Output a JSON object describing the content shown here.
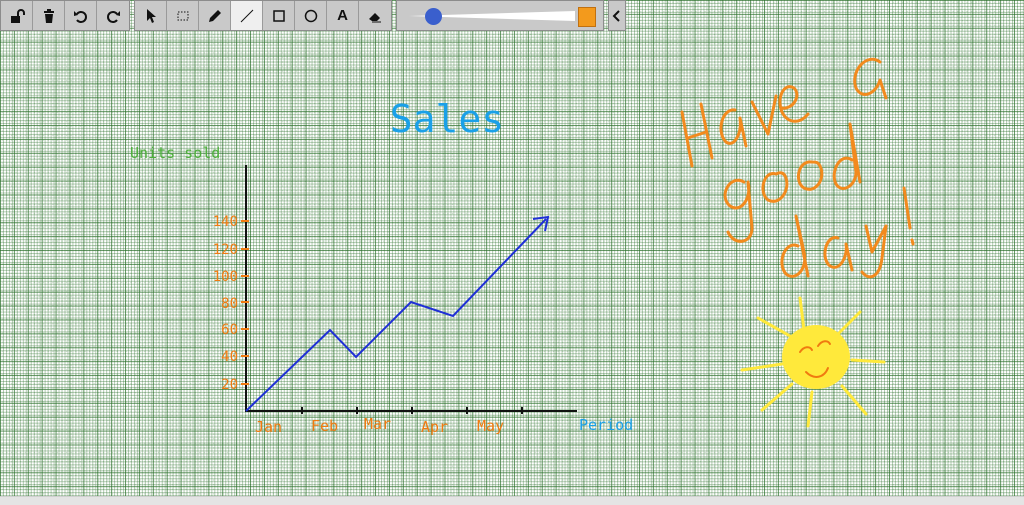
{
  "toolbar": {
    "buttons": [
      {
        "name": "lock",
        "icon": "unlock-icon"
      },
      {
        "name": "delete",
        "icon": "trash-icon"
      },
      {
        "name": "undo",
        "icon": "undo-icon"
      },
      {
        "name": "redo",
        "icon": "redo-icon"
      },
      {
        "name": "select",
        "icon": "pointer-icon"
      },
      {
        "name": "marquee",
        "icon": "marquee-icon"
      },
      {
        "name": "pencil",
        "icon": "pencil-icon"
      },
      {
        "name": "line",
        "icon": "line-icon",
        "active": true
      },
      {
        "name": "rectangle",
        "icon": "rectangle-icon"
      },
      {
        "name": "ellipse",
        "icon": "circle-icon"
      },
      {
        "name": "text",
        "icon": "text-icon",
        "label": "A"
      },
      {
        "name": "eraser",
        "icon": "eraser-icon"
      }
    ],
    "stroke_width_level": 0.1,
    "stroke_color": "#f39a1c",
    "collapse_icon": "chevron-left-icon"
  },
  "drawing": {
    "title": "Sales",
    "y_axis_label": "Units sold",
    "x_axis_label": "Period",
    "y_ticks": [
      "140",
      "120",
      "100",
      "80",
      "60",
      "40",
      "20"
    ],
    "x_ticks": [
      "Jan",
      "Feb",
      "Mar",
      "Apr",
      "May"
    ],
    "line_color": "#1f2fd6",
    "title_color": "#1aa0e8",
    "axis_label_color_y": "#4caf3a",
    "axis_label_color_x": "#1aa0e8",
    "tick_color": "#f07a10",
    "handwriting": [
      "Have a",
      "good",
      "day!"
    ],
    "handwriting_color": "#f28a1e",
    "sun_color": "#ffe93b"
  }
}
